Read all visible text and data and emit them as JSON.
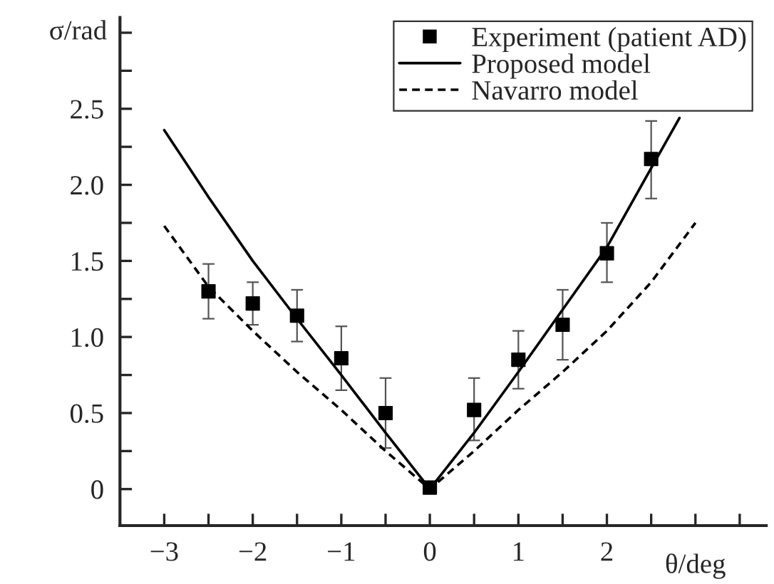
{
  "chart_data": {
    "type": "scatter",
    "xlabel": "θ/deg",
    "ylabel": "σ/rad",
    "xlim": [
      -3.5,
      3.8
    ],
    "ylim": [
      -0.24,
      3.1
    ],
    "xticks": [
      -3,
      {
        "value": -2.5,
        "label": null
      },
      -2,
      {
        "value": -1.5,
        "label": null
      },
      -1,
      {
        "value": -0.5,
        "label": null
      },
      0,
      {
        "value": 0.5,
        "label": null
      },
      1,
      {
        "value": 1.5,
        "label": null
      },
      2,
      {
        "value": 2.5,
        "label": null
      },
      {
        "value": 3,
        "label": null
      },
      {
        "value": 3.5,
        "label": null
      }
    ],
    "yticks": [
      0,
      {
        "value": 0.25,
        "label": null
      },
      {
        "value": 0.5,
        "label": "0.5"
      },
      {
        "value": 0.75,
        "label": null
      },
      {
        "value": 1,
        "label": "1.0"
      },
      {
        "value": 1.25,
        "label": null
      },
      {
        "value": 1.5,
        "label": "1.5"
      },
      {
        "value": 1.75,
        "label": null
      },
      {
        "value": 2,
        "label": "2.0"
      },
      {
        "value": 2.25,
        "label": null
      },
      {
        "value": 2.5,
        "label": "2.5"
      },
      {
        "value": 2.75,
        "label": null
      },
      {
        "value": 3,
        "label": null
      }
    ],
    "grid": false,
    "legend": "top right",
    "series": [
      {
        "name": "Experiment (patient AD)",
        "marker": "square",
        "color": "#000000",
        "x": [
          -2.5,
          -2,
          -1.5,
          -1,
          -0.5,
          0,
          0.5,
          1,
          1.5,
          2,
          2.5
        ],
        "values": [
          1.3,
          1.22,
          1.14,
          0.86,
          0.5,
          0.01,
          0.52,
          0.85,
          1.08,
          1.55,
          2.17
        ],
        "errors": [
          [
            1.12,
            1.48
          ],
          [
            1.08,
            1.36
          ],
          [
            0.97,
            1.31
          ],
          [
            0.65,
            1.07
          ],
          [
            0.27,
            0.73
          ],
          null,
          [
            0.32,
            0.73
          ],
          [
            0.66,
            1.04
          ],
          [
            0.85,
            1.31
          ],
          [
            1.36,
            1.75
          ],
          [
            1.91,
            2.42
          ]
        ]
      },
      {
        "name": "Proposed model",
        "type": "line",
        "line_style": "solid",
        "color": "#000000",
        "x": [
          -3,
          -2.5,
          -2,
          -1.5,
          -1,
          -0.5,
          0,
          0.5,
          1,
          1.5,
          2,
          2.5,
          2.82
        ],
        "values": [
          2.36,
          1.92,
          1.5,
          1.12,
          0.75,
          0.37,
          0,
          0.37,
          0.77,
          1.18,
          1.59,
          2.11,
          2.44
        ]
      },
      {
        "name": "Navarro model",
        "type": "line",
        "line_style": "dashed",
        "color": "#000000",
        "x": [
          -3,
          -2.5,
          -2,
          -1.5,
          -1,
          -0.5,
          0,
          0.5,
          1,
          1.5,
          2,
          2.5,
          3
        ],
        "values": [
          1.73,
          1.33,
          1.04,
          0.77,
          0.52,
          0.25,
          0,
          0.25,
          0.52,
          0.77,
          1.04,
          1.36,
          1.75
        ]
      }
    ]
  }
}
